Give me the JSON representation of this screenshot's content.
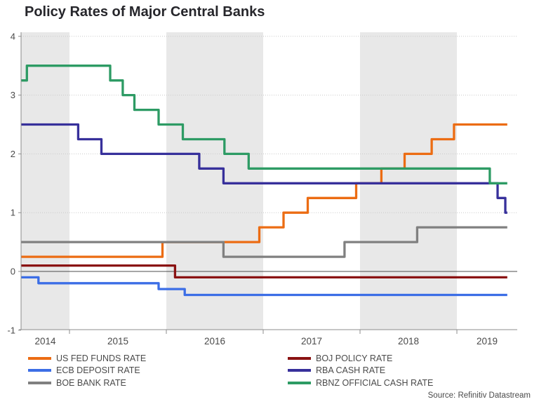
{
  "header": {
    "title": "Policy Rates of Major Central Banks"
  },
  "chart_data": {
    "type": "line",
    "subtype": "step-after",
    "title": "Policy Rates of Major Central Banks",
    "xlabel": "",
    "ylabel": "",
    "ylim": [
      -1,
      4
    ],
    "xlim": [
      2014.5,
      2019.63
    ],
    "x_data_end": 2019.52,
    "yticks": [
      4,
      3,
      2,
      1,
      0,
      -1
    ],
    "ytick_labels": [
      "4",
      "3",
      "2",
      "1",
      "0",
      "-1"
    ],
    "year_labels": [
      "2014",
      "2015",
      "2016",
      "2017",
      "2018",
      "2019"
    ],
    "years": [
      2014,
      2015,
      2016,
      2017,
      2018,
      2019
    ],
    "shaded_years": [
      2014,
      2016,
      2018
    ],
    "grid": "dotted horizontal lines at 1,2,3,4; solid line at 0",
    "legend_position": "bottom two-column",
    "series": [
      {
        "name": "US FED FUNDS RATE",
        "color": "#ec6c13",
        "steps": [
          [
            2014.5,
            0.25
          ],
          [
            2015.96,
            0.5
          ],
          [
            2016.96,
            0.75
          ],
          [
            2017.21,
            1.0
          ],
          [
            2017.46,
            1.25
          ],
          [
            2017.96,
            1.5
          ],
          [
            2018.22,
            1.75
          ],
          [
            2018.46,
            2.0
          ],
          [
            2018.74,
            2.25
          ],
          [
            2018.97,
            2.5
          ]
        ]
      },
      {
        "name": "ECB DEPOSIT RATE",
        "color": "#3c6ee6",
        "steps": [
          [
            2014.5,
            -0.1
          ],
          [
            2014.68,
            -0.2
          ],
          [
            2015.92,
            -0.3
          ],
          [
            2016.19,
            -0.4
          ]
        ]
      },
      {
        "name": "BOE BANK RATE",
        "color": "#808080",
        "steps": [
          [
            2014.5,
            0.5
          ],
          [
            2016.59,
            0.25
          ],
          [
            2017.84,
            0.5
          ],
          [
            2018.59,
            0.75
          ]
        ]
      },
      {
        "name": "BOJ POLICY RATE",
        "color": "#8a1212",
        "steps": [
          [
            2014.5,
            0.1
          ],
          [
            2016.09,
            -0.1
          ]
        ]
      },
      {
        "name": "RBA CASH RATE",
        "color": "#37309b",
        "steps": [
          [
            2014.5,
            2.5
          ],
          [
            2015.09,
            2.25
          ],
          [
            2015.33,
            2.0
          ],
          [
            2016.34,
            1.75
          ],
          [
            2016.59,
            1.5
          ],
          [
            2019.42,
            1.25
          ],
          [
            2019.5,
            1.0
          ]
        ]
      },
      {
        "name": "RBNZ OFFICIAL CASH RATE",
        "color": "#2d9b64",
        "steps": [
          [
            2014.5,
            3.25
          ],
          [
            2014.56,
            3.5
          ],
          [
            2015.42,
            3.25
          ],
          [
            2015.55,
            3.0
          ],
          [
            2015.67,
            2.75
          ],
          [
            2015.92,
            2.5
          ],
          [
            2016.17,
            2.25
          ],
          [
            2016.6,
            2.0
          ],
          [
            2016.85,
            1.75
          ],
          [
            2019.34,
            1.5
          ]
        ]
      }
    ],
    "legend_columns": [
      [
        "US FED FUNDS RATE",
        "ECB DEPOSIT RATE",
        "BOE BANK RATE"
      ],
      [
        "BOJ POLICY RATE",
        "RBA CASH RATE",
        "RBNZ OFFICIAL CASH RATE"
      ]
    ],
    "source": "Source: Refinitiv Datastream",
    "colors": {
      "band": "#e8e8e8",
      "grid": "#c9c9c9",
      "zero_line": "#4d4d4d",
      "axis": "#8c8c8c",
      "tick_text": "#4a4a4a",
      "title_text": "#26262b"
    }
  }
}
